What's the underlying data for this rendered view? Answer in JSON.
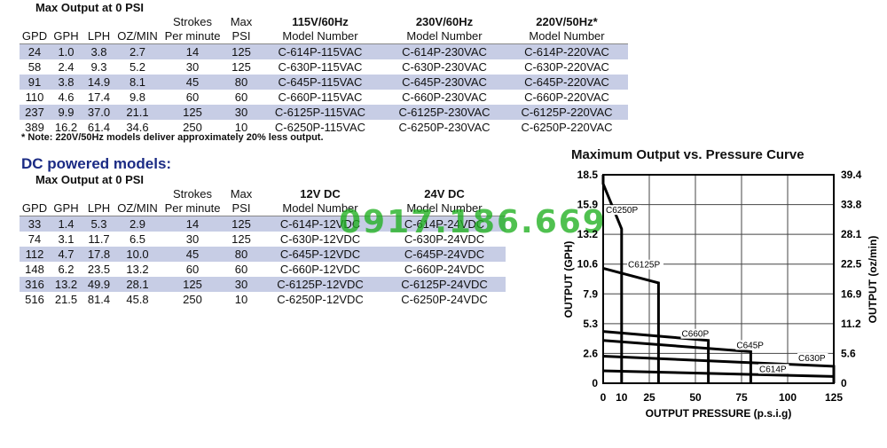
{
  "ac_table": {
    "group_header": "Max Output at 0 PSI",
    "col_headers_top": [
      "",
      "",
      "",
      "",
      "Strokes",
      "Max",
      "115V/60Hz",
      "230V/60Hz",
      "220V/50Hz*"
    ],
    "col_headers_bottom": [
      "GPD",
      "GPH",
      "LPH",
      "OZ/MIN",
      "Per minute",
      "PSI",
      "Model Number",
      "Model Number",
      "Model Number"
    ],
    "rows": [
      [
        "24",
        "1.0",
        "3.8",
        "2.7",
        "14",
        "125",
        "C-614P-115VAC",
        "C-614P-230VAC",
        "C-614P-220VAC"
      ],
      [
        "58",
        "2.4",
        "9.3",
        "5.2",
        "30",
        "125",
        "C-630P-115VAC",
        "C-630P-230VAC",
        "C-630P-220VAC"
      ],
      [
        "91",
        "3.8",
        "14.9",
        "8.1",
        "45",
        "80",
        "C-645P-115VAC",
        "C-645P-230VAC",
        "C-645P-220VAC"
      ],
      [
        "110",
        "4.6",
        "17.4",
        "9.8",
        "60",
        "60",
        "C-660P-115VAC",
        "C-660P-230VAC",
        "C-660P-220VAC"
      ],
      [
        "237",
        "9.9",
        "37.0",
        "21.1",
        "125",
        "30",
        "C-6125P-115VAC",
        "C-6125P-230VAC",
        "C-6125P-220VAC"
      ],
      [
        "389",
        "16.2",
        "61.4",
        "34.6",
        "250",
        "10",
        "C-6250P-115VAC",
        "C-6250P-230VAC",
        "C-6250P-220VAC"
      ]
    ]
  },
  "note": "* Note: 220V/50Hz models deliver approximately 20% less output.",
  "dc_title": "DC powered models:",
  "dc_table": {
    "group_header": "Max Output at 0 PSI",
    "col_headers_top": [
      "",
      "",
      "",
      "",
      "Strokes",
      "Max",
      "12V DC",
      "24V DC"
    ],
    "col_headers_bottom": [
      "GPD",
      "GPH",
      "LPH",
      "OZ/MIN",
      "Per minute",
      "PSI",
      "Model Number",
      "Model Number"
    ],
    "rows": [
      [
        "33",
        "1.4",
        "5.3",
        "2.9",
        "14",
        "125",
        "C-614P-12VDC",
        "C-614P-24VDC"
      ],
      [
        "74",
        "3.1",
        "11.7",
        "6.5",
        "30",
        "125",
        "C-630P-12VDC",
        "C-630P-24VDC"
      ],
      [
        "112",
        "4.7",
        "17.8",
        "10.0",
        "45",
        "80",
        "C-645P-12VDC",
        "C-645P-24VDC"
      ],
      [
        "148",
        "6.2",
        "23.5",
        "13.2",
        "60",
        "60",
        "C-660P-12VDC",
        "C-660P-24VDC"
      ],
      [
        "316",
        "13.2",
        "49.9",
        "28.1",
        "125",
        "30",
        "C-6125P-12VDC",
        "C-6125P-24VDC"
      ],
      [
        "516",
        "21.5",
        "81.4",
        "45.8",
        "250",
        "10",
        "C-6250P-12VDC",
        "C-6250P-24VDC"
      ]
    ]
  },
  "watermark": "0917.186.669",
  "colors": {
    "row_shade": "#c7cde5",
    "dc_title": "#1b2b84",
    "watermark": "#20b020"
  },
  "chart_data": {
    "type": "line",
    "title": "Maximum Output vs. Pressure Curve",
    "xlabel": "OUTPUT PRESSURE (p.s.i.g)",
    "ylabel_left": "OUTPUT (GPH)",
    "ylabel_right": "OUTPUT (oz/min)",
    "xlim": [
      0,
      125
    ],
    "ylim": [
      0,
      18.5
    ],
    "x_ticks": [
      "0",
      "10",
      "25",
      "50",
      "75",
      "100",
      "125"
    ],
    "x_tick_values": [
      0,
      10,
      25,
      50,
      75,
      100,
      125
    ],
    "y_ticks_left": [
      "0",
      "2.6",
      "5.3",
      "7.9",
      "10.6",
      "13.2",
      "15.9",
      "18.5"
    ],
    "y_ticks_right": [
      "0",
      "5.6",
      "11.2",
      "16.9",
      "22.5",
      "28.1",
      "33.8",
      "39.4"
    ],
    "grid": true,
    "series": [
      {
        "name": "C6250P",
        "points": [
          [
            0,
            18.5
          ],
          [
            0,
            17.7
          ],
          [
            10,
            13.7
          ],
          [
            10,
            0
          ]
        ]
      },
      {
        "name": "C6125P",
        "points": [
          [
            0,
            10.2
          ],
          [
            30,
            8.9
          ],
          [
            30,
            0
          ]
        ]
      },
      {
        "name": "C660P",
        "points": [
          [
            0,
            4.6
          ],
          [
            57,
            3.8
          ],
          [
            57,
            0
          ]
        ]
      },
      {
        "name": "C645P",
        "points": [
          [
            0,
            3.8
          ],
          [
            80,
            2.8
          ],
          [
            80,
            0
          ]
        ]
      },
      {
        "name": "C630P",
        "points": [
          [
            0,
            2.4
          ],
          [
            125,
            1.5
          ],
          [
            125,
            0
          ]
        ]
      },
      {
        "name": "C614P",
        "points": [
          [
            0,
            1.1
          ],
          [
            125,
            0.6
          ]
        ]
      }
    ],
    "series_labels": [
      "C6250P",
      "C6125P",
      "C660P",
      "C645P",
      "C630P",
      "C614P"
    ]
  }
}
